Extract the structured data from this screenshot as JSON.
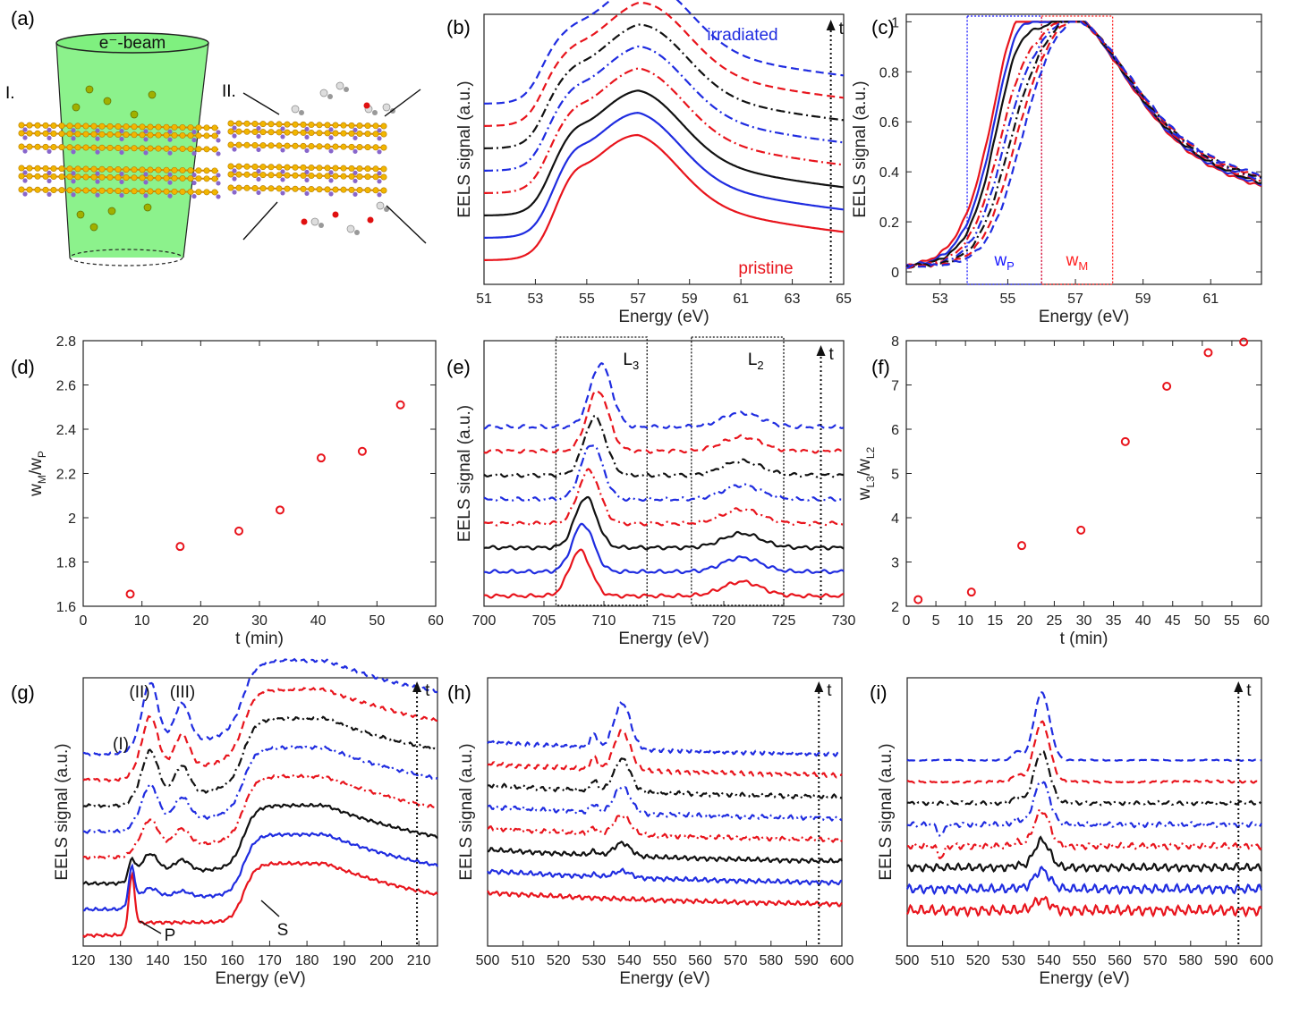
{
  "panels": [
    {
      "id": "a",
      "label": "(a)",
      "type": "schematic",
      "beam_label": "e⁻-beam",
      "stage_labels": [
        "I.",
        "II."
      ]
    },
    {
      "id": "b",
      "label": "(b)",
      "type": "line",
      "xlabel": "Energy (eV)",
      "ylabel": "EELS signal (a.u.)",
      "xlim": [
        51,
        65
      ],
      "xticks": [
        51,
        53,
        55,
        57,
        59,
        61,
        63,
        65
      ],
      "annotations": [
        "irradiated",
        "pristine",
        "t"
      ]
    },
    {
      "id": "c",
      "label": "(c)",
      "type": "line",
      "xlabel": "Energy (eV)",
      "ylabel": "EELS signal (a.u.)",
      "xlim": [
        52,
        62.5
      ],
      "ylim": [
        -0.05,
        1.03
      ],
      "xticks": [
        53,
        55,
        57,
        59,
        61
      ],
      "yticks": [
        0,
        0.2,
        0.4,
        0.6,
        0.8,
        1
      ],
      "windows": [
        {
          "label": "w",
          "sub": "P",
          "x": [
            53.8,
            56
          ],
          "color": "#1a1aff"
        },
        {
          "label": "w",
          "sub": "M",
          "x": [
            56,
            58.1
          ],
          "color": "#ff2020"
        }
      ]
    },
    {
      "id": "d",
      "label": "(d)",
      "type": "scatter",
      "xlabel": "t (min)",
      "ylabel": "w",
      "ylabel_sub1": "M",
      "ylabel_mid": "/w",
      "ylabel_sub2": "P",
      "xlim": [
        0,
        60
      ],
      "ylim": [
        1.6,
        2.8
      ],
      "xticks": [
        0,
        10,
        20,
        30,
        40,
        50,
        60
      ],
      "yticks": [
        1.6,
        1.8,
        2,
        2.2,
        2.4,
        2.6,
        2.8
      ],
      "x": [
        8,
        16.5,
        26.5,
        33.5,
        40.5,
        47.5,
        54
      ],
      "y": [
        1.655,
        1.87,
        1.94,
        2.035,
        2.27,
        2.3,
        2.51
      ]
    },
    {
      "id": "e",
      "label": "(e)",
      "type": "line",
      "xlabel": "Energy (eV)",
      "ylabel": "EELS signal (a.u.)",
      "xlim": [
        700,
        730
      ],
      "xticks": [
        700,
        705,
        710,
        715,
        720,
        725,
        730
      ],
      "windows": [
        {
          "label": "L",
          "sub": "3",
          "x": [
            706,
            713.6
          ]
        },
        {
          "label": "L",
          "sub": "2",
          "x": [
            717.3,
            725
          ]
        }
      ],
      "annotations": [
        "t"
      ]
    },
    {
      "id": "f",
      "label": "(f)",
      "type": "scatter",
      "xlabel": "t (min)",
      "ylabel": "w",
      "ylabel_sub1": "L3",
      "ylabel_mid": "/w",
      "ylabel_sub2": "L2",
      "xlim": [
        0,
        60
      ],
      "ylim": [
        2,
        8
      ],
      "xticks": [
        0,
        5,
        10,
        15,
        20,
        25,
        30,
        35,
        40,
        45,
        50,
        55,
        60
      ],
      "yticks": [
        2,
        3,
        4,
        5,
        6,
        7,
        8
      ],
      "x": [
        2,
        11,
        19.5,
        29.5,
        37,
        44,
        51,
        57
      ],
      "y": [
        2.15,
        2.32,
        3.37,
        3.72,
        5.72,
        6.97,
        7.73,
        7.97
      ]
    },
    {
      "id": "g",
      "label": "(g)",
      "type": "line",
      "xlabel": "Energy (eV)",
      "ylabel": "EELS signal (a.u.)",
      "xlim": [
        120,
        215
      ],
      "xticks": [
        120,
        130,
        140,
        150,
        160,
        170,
        180,
        190,
        200,
        210
      ],
      "annotations": [
        "(I)",
        "(II)",
        "(III)",
        "P",
        "S",
        "t"
      ]
    },
    {
      "id": "h",
      "label": "(h)",
      "type": "line",
      "xlabel": "Energy (eV)",
      "ylabel": "EELS signal (a.u.)",
      "xlim": [
        500,
        600
      ],
      "xticks": [
        500,
        510,
        520,
        530,
        540,
        550,
        560,
        570,
        580,
        590,
        600
      ],
      "annotations": [
        "t"
      ]
    },
    {
      "id": "i",
      "label": "(i)",
      "type": "line",
      "xlabel": "Energy (eV)",
      "ylabel": "EELS signal (a.u.)",
      "xlim": [
        500,
        600
      ],
      "xticks": [
        500,
        510,
        520,
        530,
        540,
        550,
        560,
        570,
        580,
        590,
        600
      ],
      "annotations": [
        "t"
      ]
    }
  ],
  "series_styles": [
    {
      "color": "#e8141c",
      "dash": "solid"
    },
    {
      "color": "#1f2ce0",
      "dash": "solid"
    },
    {
      "color": "#111111",
      "dash": "solid"
    },
    {
      "color": "#e8141c",
      "dash": "dashdot"
    },
    {
      "color": "#1f2ce0",
      "dash": "dashdot"
    },
    {
      "color": "#111111",
      "dash": "dashdot"
    },
    {
      "color": "#e8141c",
      "dash": "dashed"
    },
    {
      "color": "#1f2ce0",
      "dash": "dashed"
    }
  ],
  "chart_data": [
    {
      "panel": "b",
      "type": "line",
      "xlabel": "Energy (eV)",
      "ylabel": "EELS signal (a.u.)",
      "xlim": [
        51,
        65
      ],
      "series_count": 8,
      "order": "pristine (bottom) to irradiated (top)"
    },
    {
      "panel": "c",
      "type": "line",
      "xlabel": "Energy (eV)",
      "ylabel": "EELS signal (a.u.)",
      "xlim": [
        52,
        62.5
      ],
      "ylim": [
        -0.05,
        1.03
      ],
      "series_count": 8
    },
    {
      "panel": "d",
      "type": "scatter",
      "xlabel": "t (min)",
      "ylabel": "wM/wP",
      "xlim": [
        0,
        60
      ],
      "ylim": [
        1.6,
        2.8
      ],
      "x": [
        8,
        16.5,
        26.5,
        33.5,
        40.5,
        47.5,
        54
      ],
      "y": [
        1.655,
        1.87,
        1.94,
        2.035,
        2.27,
        2.3,
        2.51
      ]
    },
    {
      "panel": "e",
      "type": "line",
      "xlabel": "Energy (eV)",
      "ylabel": "EELS signal (a.u.)",
      "xlim": [
        700,
        730
      ],
      "series_count": 8
    },
    {
      "panel": "f",
      "type": "scatter",
      "xlabel": "t (min)",
      "ylabel": "wL3/wL2",
      "xlim": [
        0,
        60
      ],
      "ylim": [
        2,
        8
      ],
      "x": [
        2,
        11,
        19.5,
        29.5,
        37,
        44,
        51,
        57
      ],
      "y": [
        2.15,
        2.32,
        3.37,
        3.72,
        5.72,
        6.97,
        7.73,
        7.97
      ]
    },
    {
      "panel": "g",
      "type": "line",
      "xlabel": "Energy (eV)",
      "ylabel": "EELS signal (a.u.)",
      "xlim": [
        120,
        215
      ],
      "series_count": 8
    },
    {
      "panel": "h",
      "type": "line",
      "xlabel": "Energy (eV)",
      "ylabel": "EELS signal (a.u.)",
      "xlim": [
        500,
        600
      ],
      "series_count": 8
    },
    {
      "panel": "i",
      "type": "line",
      "xlabel": "Energy (eV)",
      "ylabel": "EELS signal (a.u.)",
      "xlim": [
        500,
        600
      ],
      "series_count": 8
    }
  ]
}
